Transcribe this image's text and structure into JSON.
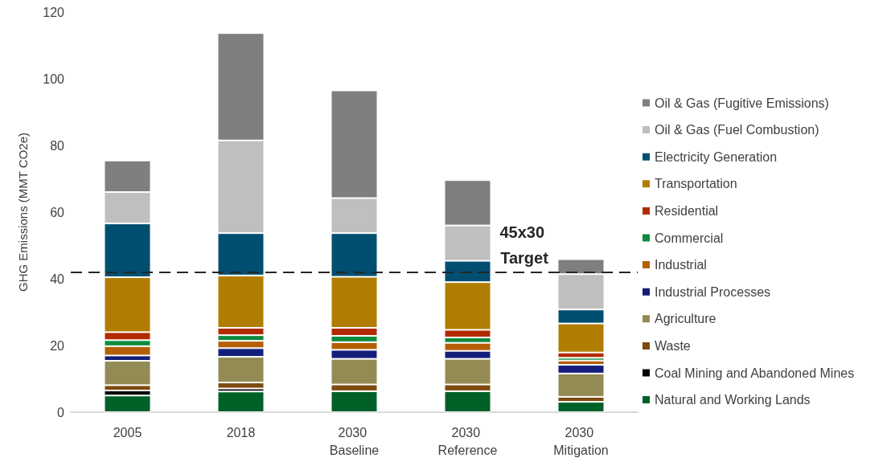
{
  "chart_data": {
    "type": "bar",
    "stacked": true,
    "categories": [
      "2005",
      "2018",
      "2030 Baseline",
      "2030 Reference",
      "2030 Mitigation"
    ],
    "ylabel": "GHG Emissions (MMT CO2e)",
    "ylim": [
      0,
      120
    ],
    "yticks": [
      0,
      20,
      40,
      60,
      80,
      100,
      120
    ],
    "grid": false,
    "legend": "right",
    "series": [
      {
        "name": "Natural and Working Lands",
        "color": "#006128",
        "values": [
          5.0,
          6.2,
          6.3,
          6.3,
          3.1
        ]
      },
      {
        "name": "Coal Mining and Abandoned Mines",
        "color": "#000000",
        "values": [
          1.5,
          0.9,
          0,
          0,
          0
        ]
      },
      {
        "name": "Waste",
        "color": "#7f4a0f",
        "values": [
          1.6,
          1.8,
          2.0,
          2.0,
          1.5
        ]
      },
      {
        "name": "Agriculture",
        "color": "#948a54",
        "values": [
          7.3,
          7.7,
          7.7,
          7.7,
          7.0
        ]
      },
      {
        "name": "Industrial Processes",
        "color": "#141e7a",
        "values": [
          1.6,
          2.6,
          2.7,
          2.4,
          2.6
        ]
      },
      {
        "name": "Industrial",
        "color": "#b45f06",
        "values": [
          2.8,
          2.2,
          2.3,
          2.4,
          1.3
        ]
      },
      {
        "name": "Commercial",
        "color": "#0f8a3f",
        "values": [
          1.8,
          1.7,
          1.9,
          1.6,
          0.8
        ]
      },
      {
        "name": "Residential",
        "color": "#b22a00",
        "values": [
          2.4,
          2.2,
          2.4,
          2.3,
          1.6
        ]
      },
      {
        "name": "Transportation",
        "color": "#b07d00",
        "values": [
          16.5,
          15.7,
          15.3,
          14.3,
          8.7
        ]
      },
      {
        "name": "Electricity Generation",
        "color": "#004f71",
        "values": [
          16.1,
          12.7,
          13.1,
          6.4,
          4.2
        ]
      },
      {
        "name": "Oil & Gas (Fuel Combustion)",
        "color": "#bfbfbf",
        "values": [
          9.4,
          27.8,
          10.5,
          10.6,
          10.6
        ]
      },
      {
        "name": "Oil & Gas (Fugitive Emissions)",
        "color": "#7f7f7f",
        "values": [
          9.5,
          32.2,
          32.3,
          13.6,
          4.5
        ]
      }
    ],
    "ref_lines": [
      {
        "axis": "y",
        "value": 42,
        "label": "45x30 Target",
        "color": "#262626",
        "line_style": "dashed"
      }
    ]
  }
}
